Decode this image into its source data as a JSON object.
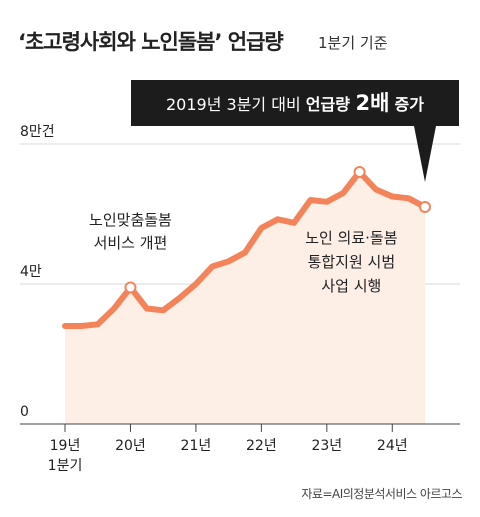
{
  "title": "‘초고령사회와 노인돌봄’ 언급량",
  "subtitle": "1분기 기준",
  "callout": {
    "prefix": "2019년 3분기 대비 ",
    "emphasis": "언급량 ",
    "value": "2배",
    "suffix": " 증가"
  },
  "source": "자료=AI의정분석서비스 아르고스",
  "colors": {
    "line": "#f5835a",
    "fill": "#fdeee6",
    "callout_bg": "#1c1c1c",
    "grid": "#d9d9d9"
  },
  "chart_data": {
    "type": "area",
    "y_ticks": [
      {
        "value": 0,
        "label": "0"
      },
      {
        "value": 40000,
        "label": "4만"
      },
      {
        "value": 80000,
        "label": "8만건"
      }
    ],
    "ylim": [
      0,
      80000
    ],
    "x_ticks": [
      {
        "x": 0,
        "label": "19년",
        "label2": "1분기"
      },
      {
        "x": 4,
        "label": "20년"
      },
      {
        "x": 8,
        "label": "21년"
      },
      {
        "x": 12,
        "label": "22년"
      },
      {
        "x": 16,
        "label": "23년"
      },
      {
        "x": 20,
        "label": "24년"
      }
    ],
    "xlim": [
      0,
      22
    ],
    "points": [
      {
        "x": 0,
        "y": 28000
      },
      {
        "x": 1,
        "y": 28000
      },
      {
        "x": 2,
        "y": 28500
      },
      {
        "x": 3,
        "y": 33000
      },
      {
        "x": 4,
        "y": 39000
      },
      {
        "x": 5,
        "y": 33000
      },
      {
        "x": 6,
        "y": 32500
      },
      {
        "x": 7,
        "y": 36000
      },
      {
        "x": 8,
        "y": 40000
      },
      {
        "x": 9,
        "y": 45000
      },
      {
        "x": 10,
        "y": 46500
      },
      {
        "x": 11,
        "y": 49000
      },
      {
        "x": 12,
        "y": 56000
      },
      {
        "x": 13,
        "y": 58500
      },
      {
        "x": 14,
        "y": 57500
      },
      {
        "x": 15,
        "y": 64000
      },
      {
        "x": 16,
        "y": 63500
      },
      {
        "x": 17,
        "y": 66000
      },
      {
        "x": 18,
        "y": 72000
      },
      {
        "x": 19,
        "y": 67000
      },
      {
        "x": 20,
        "y": 65000
      },
      {
        "x": 21,
        "y": 64500
      },
      {
        "x": 22,
        "y": 62000
      }
    ],
    "markers": [
      4,
      18,
      22
    ],
    "annotations": [
      {
        "lines": [
          "노인맞춤돌봄",
          "서비스 개편"
        ]
      },
      {
        "lines": [
          "노인 의료·돌봄",
          "통합지원 시범",
          "사업 시행"
        ]
      }
    ]
  }
}
